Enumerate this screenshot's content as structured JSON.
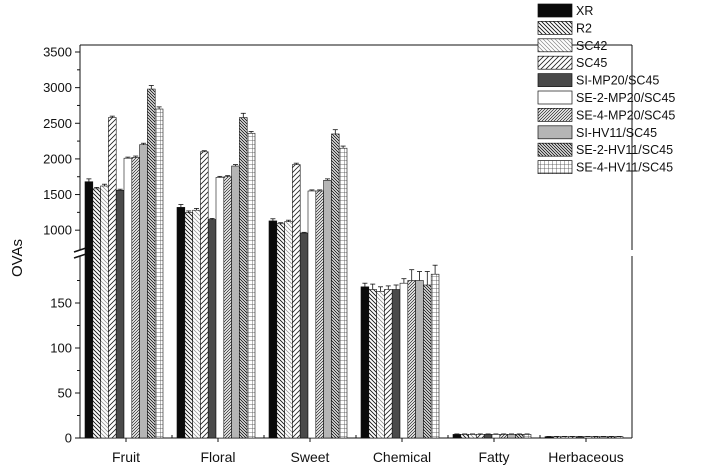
{
  "chart_data": {
    "type": "bar",
    "title": "",
    "xlabel": "",
    "ylabel": "OVAs",
    "axis_break": true,
    "ylim_lower": [
      0,
      200
    ],
    "ylim_upper": [
      750,
      3500
    ],
    "yticks_lower": [
      "0",
      "50",
      "100",
      "150"
    ],
    "yticks_upper": [
      "1000",
      "1500",
      "2000",
      "2500",
      "3000",
      "3500"
    ],
    "categories": [
      "Fruit",
      "Floral",
      "Sweet",
      "Chemical",
      "Fatty",
      "Herbaceous"
    ],
    "series": [
      {
        "name": "XR",
        "pattern": "solid-black",
        "values": [
          1680,
          1320,
          1130,
          168,
          4,
          1.5
        ],
        "errors": [
          40,
          40,
          30,
          4,
          0.5,
          0.2
        ]
      },
      {
        "name": "R2",
        "pattern": "back-diag",
        "values": [
          1580,
          1250,
          1090,
          165,
          4,
          1.5
        ],
        "errors": [
          20,
          20,
          15,
          6,
          0.5,
          0.2
        ]
      },
      {
        "name": "SC42",
        "pattern": "light-diag",
        "values": [
          1620,
          1280,
          1120,
          163,
          4,
          1.5
        ],
        "errors": [
          25,
          25,
          20,
          5,
          0.5,
          0.2
        ]
      },
      {
        "name": "SC45",
        "pattern": "fwd-diag",
        "values": [
          2580,
          2100,
          1920,
          165,
          4,
          1.5
        ],
        "errors": [
          20,
          15,
          20,
          4,
          0.5,
          0.2
        ]
      },
      {
        "name": "SI-MP20/SC45",
        "pattern": "solid-gray",
        "values": [
          1560,
          1150,
          960,
          165,
          4,
          1.5
        ],
        "errors": [
          15,
          15,
          10,
          5,
          0.5,
          0.2
        ]
      },
      {
        "name": "SE-2-MP20/SC45",
        "pattern": "white",
        "values": [
          2010,
          1740,
          1550,
          172,
          4,
          1.5
        ],
        "errors": [
          15,
          15,
          15,
          5,
          0.5,
          0.2
        ]
      },
      {
        "name": "SE-4-MP20/SC45",
        "pattern": "dense-diag",
        "values": [
          2020,
          1750,
          1550,
          175,
          4,
          1.5
        ],
        "errors": [
          20,
          15,
          15,
          12,
          0.5,
          0.2
        ]
      },
      {
        "name": "SI-HV11/SC45",
        "pattern": "solid-lightgray",
        "values": [
          2200,
          1900,
          1700,
          175,
          4,
          1.5
        ],
        "errors": [
          20,
          20,
          20,
          10,
          0.5,
          0.2
        ]
      },
      {
        "name": "SE-2-HV11/SC45",
        "pattern": "dense-back-diag",
        "values": [
          2980,
          2580,
          2350,
          170,
          4,
          1.5
        ],
        "errors": [
          50,
          60,
          60,
          15,
          0.5,
          0.2
        ]
      },
      {
        "name": "SE-4-HV11/SC45",
        "pattern": "grid",
        "values": [
          2700,
          2360,
          2150,
          182,
          4,
          1.5
        ],
        "errors": [
          30,
          25,
          30,
          10,
          0.5,
          0.2
        ]
      }
    ]
  }
}
